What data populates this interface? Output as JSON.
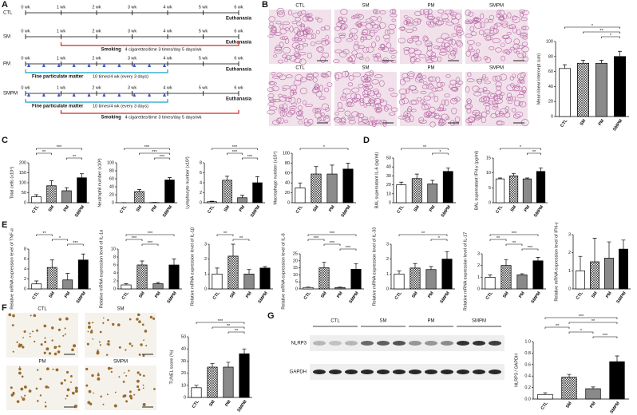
{
  "panels": [
    "A",
    "B",
    "C",
    "D",
    "E",
    "F",
    "G"
  ],
  "timeline": {
    "weeks": [
      "0 wk",
      "1 wk",
      "2 wk",
      "3 wk",
      "4 wk",
      "5 wk",
      "6 wk"
    ],
    "end": "Euthanasia",
    "groups": [
      {
        "name": "CTL",
        "smoking": false,
        "pm": false
      },
      {
        "name": "SM",
        "smoking": true,
        "pm": false
      },
      {
        "name": "PM",
        "smoking": false,
        "pm": true
      },
      {
        "name": "SMPM",
        "smoking": true,
        "pm": true
      }
    ],
    "smoking_label": "Smoking",
    "smoking_detail": "4 cigarettes/time  3 times/day  5 days/wk",
    "pm_label": "Fine particulate matter",
    "pm_detail": "10 times/4 wk (every 3 days)"
  },
  "histology": {
    "labels": [
      "CTL",
      "SM",
      "PM",
      "SMPM"
    ]
  },
  "tunel_images": {
    "labels": [
      "CTL",
      "SM",
      "PM",
      "SMPM"
    ]
  },
  "blot": {
    "groups": [
      "CTL",
      "SM",
      "PM",
      "SMPM"
    ],
    "rows": [
      "NLRP3",
      "GAPDH"
    ]
  },
  "chart_data": [
    {
      "type": "bar",
      "ylabel": "Mean linear intercept (um)",
      "categories": [
        "CTL",
        "SM",
        "PM",
        "SMPM"
      ],
      "values": [
        64,
        71,
        71,
        80
      ],
      "errors": [
        5,
        4,
        4,
        7
      ],
      "ylim": [
        0,
        100
      ],
      "yticks": [
        0,
        20,
        40,
        60,
        80,
        100
      ],
      "bar_styles": [
        "#ffffff",
        "crosshatch",
        "#8a8a8a",
        "#000000"
      ],
      "comparisons": [
        {
          "pair": [
            "CTL",
            "SMPM"
          ],
          "label": "*"
        },
        {
          "pair": [
            "SM",
            "SMPM"
          ],
          "label": "**"
        },
        {
          "pair": [
            "PM",
            "SMPM"
          ],
          "label": "*"
        }
      ]
    },
    {
      "type": "bar",
      "ylabel": "Total cells (x10⁴)",
      "categories": [
        "CTL",
        "SM",
        "PM",
        "SMPM"
      ],
      "values": [
        30,
        85,
        60,
        125
      ],
      "errors": [
        10,
        25,
        15,
        20
      ],
      "ylim": [
        0,
        200
      ],
      "yticks": [
        0,
        50,
        100,
        150,
        200
      ],
      "bar_styles": [
        "#ffffff",
        "crosshatch",
        "#8a8a8a",
        "#000000"
      ],
      "comparisons": [
        {
          "pair": [
            "CTL",
            "SMPM"
          ],
          "label": "***"
        },
        {
          "pair": [
            "CTL",
            "SM"
          ],
          "label": "**"
        },
        {
          "pair": [
            "PM",
            "SMPM"
          ],
          "label": "**"
        }
      ]
    },
    {
      "type": "bar",
      "ylabel": "Neutrophil number (x10²)",
      "categories": [
        "CTL",
        "SM",
        "PM",
        "SMPM"
      ],
      "values": [
        0,
        28,
        0.5,
        57
      ],
      "errors": [
        0.2,
        5,
        0.3,
        6
      ],
      "ylim": [
        0,
        100
      ],
      "yticks": [
        0,
        20,
        40,
        60,
        80,
        100
      ],
      "bar_styles": [
        "#ffffff",
        "crosshatch",
        "#8a8a8a",
        "#000000"
      ],
      "comparisons": [
        {
          "pair": [
            "CTL",
            "SMPM"
          ],
          "label": "***"
        },
        {
          "pair": [
            "SM",
            "SMPM"
          ],
          "label": "***"
        },
        {
          "pair": [
            "PM",
            "SMPM"
          ],
          "label": "***"
        }
      ]
    },
    {
      "type": "bar",
      "ylabel": "Lymphocyte number (x10²)",
      "categories": [
        "CTL",
        "SM",
        "PM",
        "SMPM"
      ],
      "values": [
        0.2,
        4.5,
        1,
        4
      ],
      "errors": [
        0.1,
        0.8,
        0.5,
        1.2
      ],
      "ylim": [
        0,
        8
      ],
      "yticks": [
        0,
        2,
        4,
        6,
        8
      ],
      "bar_styles": [
        "#ffffff",
        "crosshatch",
        "#8a8a8a",
        "#000000"
      ],
      "comparisons": [
        {
          "pair": [
            "CTL",
            "SMPM"
          ],
          "label": "***"
        },
        {
          "pair": [
            "SM",
            "PM"
          ],
          "label": "***"
        },
        {
          "pair": [
            "PM",
            "SMPM"
          ],
          "label": "***"
        }
      ]
    },
    {
      "type": "bar",
      "ylabel": "Macrophage number (x10⁴)",
      "categories": [
        "CTL",
        "SM",
        "PM",
        "SMPM"
      ],
      "values": [
        30,
        58,
        58,
        68
      ],
      "errors": [
        10,
        15,
        18,
        12
      ],
      "ylim": [
        0,
        100
      ],
      "yticks": [
        0,
        20,
        40,
        60,
        80,
        100
      ],
      "bar_styles": [
        "#ffffff",
        "crosshatch",
        "#8a8a8a",
        "#000000"
      ],
      "comparisons": [
        {
          "pair": [
            "CTL",
            "SMPM"
          ],
          "label": "*"
        }
      ]
    },
    {
      "type": "bar",
      "ylabel": "BAL supernatant IL-6 (pg/ml)",
      "categories": [
        "CTL",
        "SM",
        "PM",
        "SMPM"
      ],
      "values": [
        20,
        27,
        21,
        35
      ],
      "errors": [
        3,
        5,
        4,
        4
      ],
      "ylim": [
        0,
        50
      ],
      "yticks": [
        0,
        10,
        20,
        30,
        40,
        50
      ],
      "bar_styles": [
        "#ffffff",
        "crosshatch",
        "#8a8a8a",
        "#000000"
      ],
      "comparisons": [
        {
          "pair": [
            "CTL",
            "SMPM"
          ],
          "label": "**"
        },
        {
          "pair": [
            "PM",
            "SMPM"
          ],
          "label": "*"
        }
      ]
    },
    {
      "type": "bar",
      "ylabel": "BAL supernatant IFN-γ (pg/ml)",
      "categories": [
        "CTL",
        "SM",
        "PM",
        "SMPM"
      ],
      "values": [
        8,
        9,
        8,
        10.5
      ],
      "errors": [
        0.3,
        0.8,
        0.3,
        1.2
      ],
      "ylim": [
        0,
        15
      ],
      "yticks": [
        0,
        5,
        10,
        15
      ],
      "bar_styles": [
        "#ffffff",
        "crosshatch",
        "#8a8a8a",
        "#000000"
      ],
      "comparisons": [
        {
          "pair": [
            "CTL",
            "SMPM"
          ],
          "label": "*"
        },
        {
          "pair": [
            "PM",
            "SMPM"
          ],
          "label": "**"
        }
      ]
    },
    {
      "type": "bar",
      "ylabel": "Relative mRNA expression level of TNF-α",
      "categories": [
        "CTL",
        "SM",
        "PM",
        "SMPM"
      ],
      "values": [
        1,
        4.3,
        1.8,
        5.8
      ],
      "errors": [
        0.6,
        1.5,
        1.3,
        1.2
      ],
      "ylim": [
        0,
        8
      ],
      "yticks": [
        0,
        2,
        4,
        6,
        8
      ],
      "bar_styles": [
        "#ffffff",
        "crosshatch",
        "#8a8a8a",
        "#000000"
      ],
      "comparisons": [
        {
          "pair": [
            "CTL",
            "SM"
          ],
          "label": "**"
        },
        {
          "pair": [
            "SM",
            "PM"
          ],
          "label": "*"
        },
        {
          "pair": [
            "PM",
            "SMPM"
          ],
          "label": "***"
        }
      ]
    },
    {
      "type": "bar",
      "ylabel": "Relative mRNA expression level of IL-1α",
      "categories": [
        "CTL",
        "SM",
        "PM",
        "SMPM"
      ],
      "values": [
        1,
        6,
        1.3,
        6
      ],
      "errors": [
        0.3,
        1,
        0.3,
        1.5
      ],
      "ylim": [
        0,
        10
      ],
      "yticks": [
        0,
        2,
        4,
        6,
        8,
        10
      ],
      "bar_styles": [
        "#ffffff",
        "crosshatch",
        "#8a8a8a",
        "#000000"
      ],
      "comparisons": [
        {
          "pair": [
            "CTL",
            "SMPM"
          ],
          "label": "***"
        },
        {
          "pair": [
            "CTL",
            "SM"
          ],
          "label": "***"
        },
        {
          "pair": [
            "SM",
            "PM"
          ],
          "label": "***"
        }
      ]
    },
    {
      "type": "bar",
      "ylabel": "Relative mRNA expression level of IL-1β",
      "categories": [
        "CTL",
        "SM",
        "PM",
        "SMPM"
      ],
      "values": [
        1,
        2.2,
        1,
        1.4
      ],
      "errors": [
        0.4,
        0.8,
        0.3,
        0.1
      ],
      "ylim": [
        0,
        3
      ],
      "yticks": [
        0,
        1,
        2,
        3
      ],
      "bar_styles": [
        "#ffffff",
        "crosshatch",
        "#8a8a8a",
        "#000000"
      ],
      "comparisons": [
        {
          "pair": [
            "CTL",
            "SM"
          ],
          "label": "**"
        },
        {
          "pair": [
            "SM",
            "PM"
          ],
          "label": "**"
        }
      ]
    },
    {
      "type": "bar",
      "ylabel": "Relative mRNA expression level of IL-6",
      "categories": [
        "CTL",
        "SM",
        "PM",
        "SMPM"
      ],
      "values": [
        1,
        15,
        1,
        14
      ],
      "errors": [
        0.3,
        4,
        0.3,
        4
      ],
      "ylim": [
        0,
        25
      ],
      "yticks": [
        0,
        5,
        10,
        15,
        20,
        25
      ],
      "bar_styles": [
        "#ffffff",
        "crosshatch",
        "#8a8a8a",
        "#000000"
      ],
      "comparisons": [
        {
          "pair": [
            "CTL",
            "SMPM"
          ],
          "label": "***"
        },
        {
          "pair": [
            "CTL",
            "SM"
          ],
          "label": "***"
        },
        {
          "pair": [
            "SM",
            "PM"
          ],
          "label": "***"
        },
        {
          "pair": [
            "PM",
            "SMPM"
          ],
          "label": "***"
        }
      ]
    },
    {
      "type": "bar",
      "ylabel": "Relative mRNA expression level of IL-33",
      "categories": [
        "CTL",
        "SM",
        "PM",
        "SMPM"
      ],
      "values": [
        1,
        1.4,
        1.3,
        2
      ],
      "errors": [
        0.2,
        0.3,
        0.2,
        0.5
      ],
      "ylim": [
        0,
        3
      ],
      "yticks": [
        0,
        1,
        2,
        3
      ],
      "bar_styles": [
        "#ffffff",
        "crosshatch",
        "#8a8a8a",
        "#000000"
      ],
      "comparisons": [
        {
          "pair": [
            "CTL",
            "SMPM"
          ],
          "label": "**"
        },
        {
          "pair": [
            "PM",
            "SMPM"
          ],
          "label": "*"
        }
      ]
    },
    {
      "type": "bar",
      "ylabel": "Relative mRNA expression level of IL-17",
      "categories": [
        "CTL",
        "SM",
        "PM",
        "SMPM"
      ],
      "values": [
        1,
        2,
        1.2,
        2.4
      ],
      "errors": [
        0.2,
        0.5,
        0.1,
        0.3
      ],
      "ylim": [
        0,
        3
      ],
      "yticks": [
        0,
        1,
        2,
        3
      ],
      "bar_styles": [
        "#ffffff",
        "crosshatch",
        "#8a8a8a",
        "#000000"
      ],
      "comparisons": [
        {
          "pair": [
            "CTL",
            "SMPM"
          ],
          "label": "***"
        },
        {
          "pair": [
            "CTL",
            "SM"
          ],
          "label": "**"
        },
        {
          "pair": [
            "SM",
            "PM"
          ],
          "label": "**"
        },
        {
          "pair": [
            "PM",
            "SMPM"
          ],
          "label": "***"
        }
      ]
    },
    {
      "type": "bar",
      "ylabel": "Relative mRNA expression level of IFN-γ",
      "categories": [
        "CTL",
        "SM",
        "PM",
        "SMPM"
      ],
      "values": [
        1,
        1.5,
        1.7,
        2.2
      ],
      "errors": [
        0.8,
        1.3,
        0.9,
        0.5
      ],
      "ylim": [
        0,
        3
      ],
      "yticks": [
        0,
        1,
        2,
        3
      ],
      "bar_styles": [
        "#ffffff",
        "crosshatch",
        "#8a8a8a",
        "#000000"
      ],
      "comparisons": []
    },
    {
      "type": "bar",
      "ylabel": "TUNEL score (%)",
      "categories": [
        "CTL",
        "SM",
        "PM",
        "SMPM"
      ],
      "values": [
        8,
        25,
        25,
        36
      ],
      "errors": [
        2,
        3,
        4,
        4
      ],
      "ylim": [
        0,
        50
      ],
      "yticks": [
        0,
        10,
        20,
        30,
        40,
        50
      ],
      "bar_styles": [
        "#ffffff",
        "crosshatch",
        "#8a8a8a",
        "#000000"
      ],
      "comparisons": [
        {
          "pair": [
            "CTL",
            "SMPM"
          ],
          "label": "***"
        },
        {
          "pair": [
            "SM",
            "SMPM"
          ],
          "label": "**"
        },
        {
          "pair": [
            "PM",
            "SMPM"
          ],
          "label": "**"
        }
      ]
    },
    {
      "type": "bar",
      "ylabel": "NLRP3 / GAPDH",
      "categories": [
        "CTL",
        "SM",
        "PM",
        "SMPM"
      ],
      "values": [
        0.08,
        0.38,
        0.18,
        0.65
      ],
      "errors": [
        0.03,
        0.05,
        0.03,
        0.1
      ],
      "ylim": [
        0,
        1
      ],
      "yticks": [
        {
          "value": 0,
          "label": "0.0"
        },
        {
          "value": 0.2,
          "label": "0.2"
        },
        {
          "value": 0.4,
          "label": "0.4"
        },
        {
          "value": 0.6,
          "label": "0.6"
        },
        {
          "value": 0.8,
          "label": "0.8"
        },
        {
          "value": 1,
          "label": "1.0"
        }
      ],
      "bar_styles": [
        "#ffffff",
        "crosshatch",
        "#8a8a8a",
        "#000000"
      ],
      "comparisons": [
        {
          "pair": [
            "CTL",
            "SMPM"
          ],
          "label": "***"
        },
        {
          "pair": [
            "SM",
            "SMPM"
          ],
          "label": "**"
        },
        {
          "pair": [
            "CTL",
            "SM"
          ],
          "label": "**"
        },
        {
          "pair": [
            "SM",
            "PM"
          ],
          "label": "*"
        },
        {
          "pair": [
            "PM",
            "SMPM"
          ],
          "label": "***"
        }
      ]
    }
  ]
}
